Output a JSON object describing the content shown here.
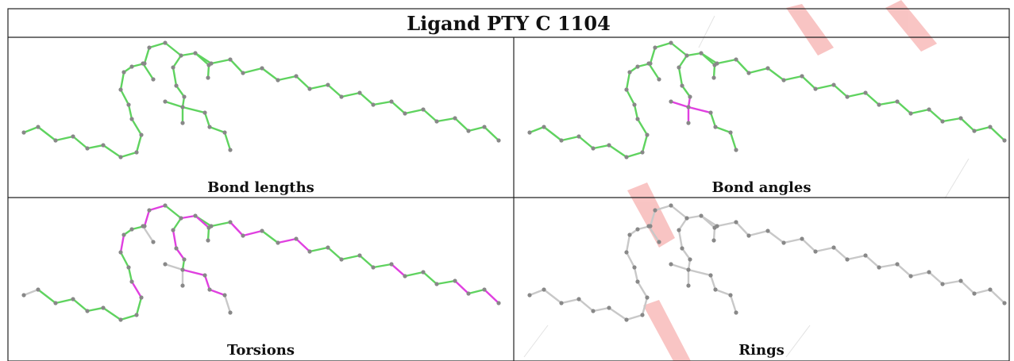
{
  "title": "Ligand PTY C 1104",
  "panels": [
    {
      "caption": "Bond lengths"
    },
    {
      "caption": "Bond angles"
    },
    {
      "caption": "Torsions"
    },
    {
      "caption": "Rings"
    }
  ],
  "colors": {
    "ok": "#5fd35f",
    "outlier": "#e040e0",
    "neutral": "#c8c8c8",
    "atom": "#888888",
    "watermark": "#e8302a"
  }
}
